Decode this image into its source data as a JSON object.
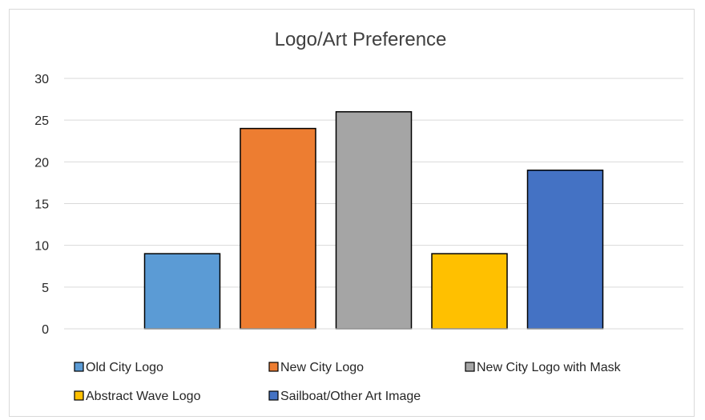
{
  "chart_data": {
    "type": "bar",
    "title": "Logo/Art Preference",
    "xlabel": "",
    "ylabel": "",
    "ylim": [
      0,
      30
    ],
    "yticks": [
      0,
      5,
      10,
      15,
      20,
      25,
      30
    ],
    "grid": true,
    "legend_position": "bottom",
    "series": [
      {
        "name": "Old City Logo",
        "value": 9,
        "color": "#5B9BD5"
      },
      {
        "name": "New City Logo",
        "value": 24,
        "color": "#ED7D31"
      },
      {
        "name": "New City Logo with Mask",
        "value": 26,
        "color": "#A5A5A5"
      },
      {
        "name": "Abstract Wave Logo",
        "value": 9,
        "color": "#FFC000"
      },
      {
        "name": "Sailboat/Other Art Image",
        "value": 19,
        "color": "#4472C4"
      }
    ]
  }
}
